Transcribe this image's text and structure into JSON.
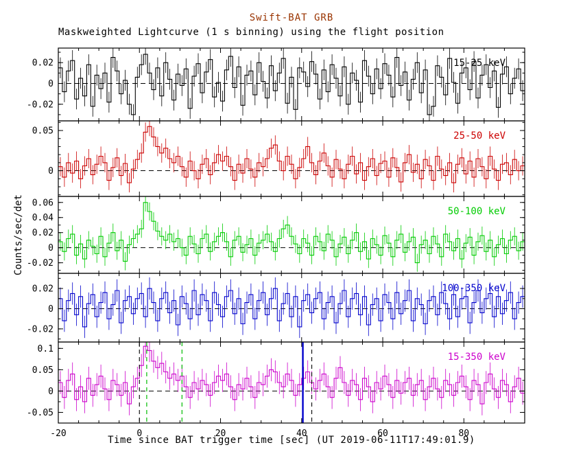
{
  "header": {
    "title": "Swift-BAT GRB",
    "subtitle": "Maskweighted Lightcurve (1 s binning) using the flight position",
    "title_color": "#993300"
  },
  "axes": {
    "xlabel": "Time since BAT trigger time [sec] (UT 2019-06-11T17:49:01.9)",
    "ylabel": "Counts/sec/det"
  },
  "chart_data": {
    "type": "line",
    "style": "five stacked 1-s binned step lightcurves with error bars, dashed zero lines",
    "x_start": -20,
    "bin_width": 1,
    "xlim": [
      -20,
      95
    ],
    "xticks": [
      -20,
      0,
      20,
      40,
      60,
      80
    ],
    "xtick_minor_step": 5,
    "panels": [
      {
        "label": "15-25 keV",
        "color": "#000000",
        "ylim": [
          -0.036,
          0.034
        ],
        "ytick_values": [
          -0.02,
          0,
          0.02
        ],
        "ytick_labels": [
          "-0.02",
          "0",
          "0.02"
        ],
        "ytick_minor_step": 0.01,
        "sigma": 0.01,
        "values": [
          0.015,
          -0.008,
          0.012,
          0.022,
          -0.015,
          0.005,
          -0.012,
          0.018,
          -0.022,
          0.008,
          -0.005,
          0.01,
          -0.018,
          0.025,
          0.012,
          -0.01,
          0.003,
          -0.02,
          -0.03,
          0.006,
          0.018,
          0.028,
          0.01,
          -0.006,
          0.015,
          -0.012,
          0.02,
          0.004,
          -0.016,
          0.009,
          -0.002,
          0.014,
          -0.024,
          0.007,
          0.019,
          -0.009,
          0.011,
          0.023,
          -0.013,
          0.001,
          -0.017,
          0.013,
          0.026,
          -0.004,
          0.016,
          -0.021,
          0.008,
          0.012,
          -0.011,
          0.02,
          0.002,
          -0.014,
          0.017,
          -0.007,
          0.01,
          0.024,
          -0.019,
          0.006,
          -0.025,
          0.015,
          0.011,
          -0.003,
          0.021,
          0.009,
          -0.015,
          0.013,
          -0.008,
          0.018,
          0.005,
          -0.012,
          0.016,
          -0.02,
          0.01,
          0.003,
          -0.018,
          0.022,
          0.007,
          -0.01,
          0.014,
          -0.005,
          0.019,
          0.008,
          -0.013,
          0.025,
          -0.002,
          0.011,
          -0.016,
          0.004,
          0.02,
          -0.009,
          0.013,
          -0.03,
          -0.022,
          0.017,
          0.006,
          -0.011,
          0.024,
          0.001,
          -0.019,
          0.01,
          0.015,
          -0.006,
          0.021,
          -0.014,
          0.008,
          0.018,
          -0.004,
          0.012,
          -0.023,
          0.009,
          0.016,
          -0.01,
          0.005,
          0.014,
          -0.007
        ]
      },
      {
        "label": "25-50 keV",
        "color": "#cc0000",
        "ylim": [
          -0.032,
          0.062
        ],
        "ytick_values": [
          0,
          0.05
        ],
        "ytick_labels": [
          "0",
          "0.05"
        ],
        "ytick_minor_step": 0.01,
        "sigma": 0.012,
        "values": [
          0.005,
          -0.008,
          0.01,
          -0.003,
          0.012,
          -0.01,
          0.006,
          0.015,
          -0.005,
          0.008,
          0.018,
          0.01,
          -0.012,
          0.004,
          0.016,
          -0.006,
          0.009,
          -0.015,
          0.002,
          0.014,
          0.022,
          0.048,
          0.055,
          0.042,
          0.03,
          0.022,
          0.028,
          0.015,
          0.01,
          0.018,
          0.005,
          -0.008,
          0.012,
          0.0,
          -0.01,
          0.008,
          0.015,
          -0.005,
          0.01,
          0.02,
          0.012,
          0.018,
          0.005,
          -0.012,
          0.008,
          -0.003,
          0.015,
          0.002,
          -0.008,
          0.01,
          0.005,
          0.015,
          0.028,
          0.032,
          0.012,
          0.0,
          0.018,
          0.008,
          -0.01,
          0.004,
          0.015,
          0.03,
          0.01,
          -0.005,
          0.012,
          0.022,
          0.006,
          -0.008,
          0.014,
          0.002,
          -0.01,
          0.008,
          0.018,
          -0.004,
          0.01,
          -0.012,
          0.005,
          0.015,
          -0.006,
          0.009,
          0.012,
          -0.008,
          0.016,
          0.004,
          -0.014,
          0.01,
          0.02,
          -0.002,
          0.008,
          -0.01,
          0.014,
          0.006,
          -0.012,
          0.018,
          0.002,
          -0.006,
          0.01,
          -0.015,
          0.008,
          0.016,
          -0.004,
          0.012,
          -0.008,
          0.015,
          0.005,
          -0.01,
          0.018,
          0.002,
          -0.012,
          0.008,
          0.01,
          -0.005,
          0.014,
          0.0,
          0.006
        ]
      },
      {
        "label": "50-100 keV",
        "color": "#00cc00",
        "ylim": [
          -0.034,
          0.068
        ],
        "ytick_values": [
          -0.02,
          0,
          0.02,
          0.04,
          0.06
        ],
        "ytick_labels": [
          "-0.02",
          "0",
          "0.02",
          "0.04",
          "0.06"
        ],
        "ytick_minor_step": 0.01,
        "sigma": 0.012,
        "values": [
          0.008,
          -0.005,
          0.012,
          0.018,
          -0.01,
          0.005,
          -0.015,
          0.01,
          0.002,
          -0.008,
          0.015,
          -0.012,
          0.006,
          0.02,
          -0.004,
          0.01,
          -0.018,
          0.004,
          0.012,
          0.018,
          0.025,
          0.06,
          0.048,
          0.035,
          0.022,
          0.015,
          0.01,
          0.018,
          0.008,
          0.012,
          0.0,
          -0.01,
          0.015,
          0.005,
          -0.008,
          0.012,
          0.018,
          -0.005,
          0.008,
          0.015,
          0.02,
          0.008,
          -0.012,
          0.01,
          0.015,
          -0.006,
          0.004,
          0.012,
          -0.01,
          0.006,
          0.01,
          0.018,
          0.008,
          -0.005,
          0.012,
          0.025,
          0.03,
          0.015,
          0.005,
          -0.008,
          0.012,
          0.006,
          -0.01,
          0.015,
          0.008,
          -0.004,
          0.018,
          0.01,
          -0.012,
          0.005,
          0.014,
          -0.008,
          0.01,
          0.02,
          -0.005,
          0.008,
          -0.015,
          0.012,
          0.004,
          -0.01,
          0.016,
          0.006,
          -0.012,
          0.01,
          0.018,
          -0.006,
          0.008,
          0.014,
          -0.02,
          0.004,
          0.01,
          -0.008,
          0.015,
          0.005,
          -0.012,
          0.018,
          0.008,
          -0.004,
          0.012,
          -0.015,
          0.006,
          0.014,
          -0.01,
          0.008,
          0.016,
          -0.005,
          0.01,
          -0.012,
          0.004,
          0.012,
          -0.008,
          0.01,
          0.015,
          -0.004,
          0.008
        ]
      },
      {
        "label": "100-350 keV",
        "color": "#0000cc",
        "ylim": [
          -0.033,
          0.035
        ],
        "ytick_values": [
          -0.02,
          0,
          0.02
        ],
        "ytick_labels": [
          "-0.02",
          "0",
          "0.02"
        ],
        "ytick_minor_step": 0.01,
        "sigma": 0.011,
        "values": [
          0.01,
          -0.012,
          0.008,
          0.015,
          -0.006,
          0.012,
          -0.018,
          0.005,
          0.014,
          -0.008,
          0.006,
          0.016,
          -0.01,
          0.004,
          0.018,
          -0.014,
          0.008,
          0.012,
          -0.005,
          0.01,
          0.015,
          -0.008,
          0.02,
          0.006,
          -0.012,
          0.01,
          0.016,
          -0.004,
          0.008,
          -0.016,
          0.012,
          0.005,
          -0.01,
          0.018,
          -0.006,
          0.014,
          0.008,
          -0.012,
          0.016,
          0.004,
          -0.008,
          0.012,
          0.018,
          -0.005,
          0.01,
          -0.015,
          0.006,
          0.014,
          -0.01,
          0.008,
          0.016,
          -0.006,
          0.01,
          0.02,
          -0.012,
          0.005,
          0.015,
          -0.008,
          0.012,
          -0.018,
          0.008,
          0.014,
          -0.004,
          0.01,
          0.016,
          -0.01,
          0.006,
          0.012,
          -0.014,
          0.005,
          0.018,
          -0.008,
          0.01,
          0.015,
          -0.006,
          0.012,
          -0.016,
          0.004,
          0.01,
          -0.012,
          0.014,
          0.006,
          -0.01,
          0.016,
          -0.005,
          0.008,
          0.018,
          -0.012,
          0.01,
          0.004,
          -0.015,
          0.008,
          0.012,
          -0.006,
          0.016,
          0.005,
          -0.01,
          0.014,
          -0.008,
          0.01,
          0.012,
          -0.014,
          0.006,
          0.018,
          -0.004,
          0.01,
          0.015,
          -0.008,
          0.012,
          -0.005,
          0.008,
          0.016,
          -0.01,
          0.006,
          0.012
        ]
      },
      {
        "label": "15-350 keV",
        "color": "#cc00cc",
        "ylim": [
          -0.075,
          0.115
        ],
        "ytick_values": [
          -0.05,
          0,
          0.05,
          0.1
        ],
        "ytick_labels": [
          "-0.05",
          "0",
          "0.05",
          "0.1"
        ],
        "ytick_minor_step": 0.025,
        "sigma": 0.027,
        "vlines": [
          {
            "x": 0,
            "color": "#000000",
            "style": "dashed",
            "width": 1.1
          },
          {
            "x": 1.8,
            "color": "#00bb00",
            "style": "dashed",
            "width": 1.2
          },
          {
            "x": 10.5,
            "color": "#00bb00",
            "style": "dashed",
            "width": 1.2
          },
          {
            "x": 40.3,
            "color": "#0000cc",
            "style": "solid",
            "width": 2.4
          },
          {
            "x": 42.5,
            "color": "#000000",
            "style": "dashed",
            "width": 1.1
          }
        ],
        "values": [
          0.02,
          -0.015,
          0.025,
          0.04,
          -0.02,
          0.01,
          -0.025,
          0.03,
          -0.01,
          0.015,
          0.035,
          0.005,
          -0.02,
          0.025,
          0.015,
          -0.01,
          0.02,
          -0.03,
          0.01,
          0.03,
          0.06,
          0.105,
          0.095,
          0.07,
          0.055,
          0.065,
          0.045,
          0.03,
          0.04,
          0.025,
          0.035,
          0.01,
          -0.015,
          0.02,
          0.005,
          0.025,
          0.015,
          -0.01,
          0.02,
          0.035,
          0.025,
          0.04,
          0.01,
          -0.02,
          0.015,
          0.005,
          0.03,
          0.01,
          -0.015,
          0.02,
          0.015,
          0.035,
          0.05,
          0.045,
          0.02,
          0.01,
          0.04,
          0.025,
          -0.01,
          0.015,
          0.03,
          0.045,
          0.02,
          0.005,
          0.025,
          0.04,
          0.01,
          -0.015,
          0.03,
          0.055,
          0.02,
          -0.01,
          0.025,
          0.015,
          -0.02,
          0.03,
          0.01,
          -0.025,
          0.02,
          0.005,
          0.035,
          0.015,
          -0.015,
          0.025,
          -0.005,
          0.02,
          0.03,
          -0.01,
          0.015,
          0.025,
          -0.02,
          0.01,
          0.03,
          0.005,
          -0.015,
          0.025,
          0.015,
          -0.01,
          0.02,
          0.035,
          0.01,
          -0.02,
          0.025,
          0.015,
          -0.03,
          0.02,
          0.04,
          0.005,
          -0.015,
          0.025,
          0.015,
          -0.025,
          0.01,
          0.03,
          -0.005
        ]
      }
    ]
  }
}
